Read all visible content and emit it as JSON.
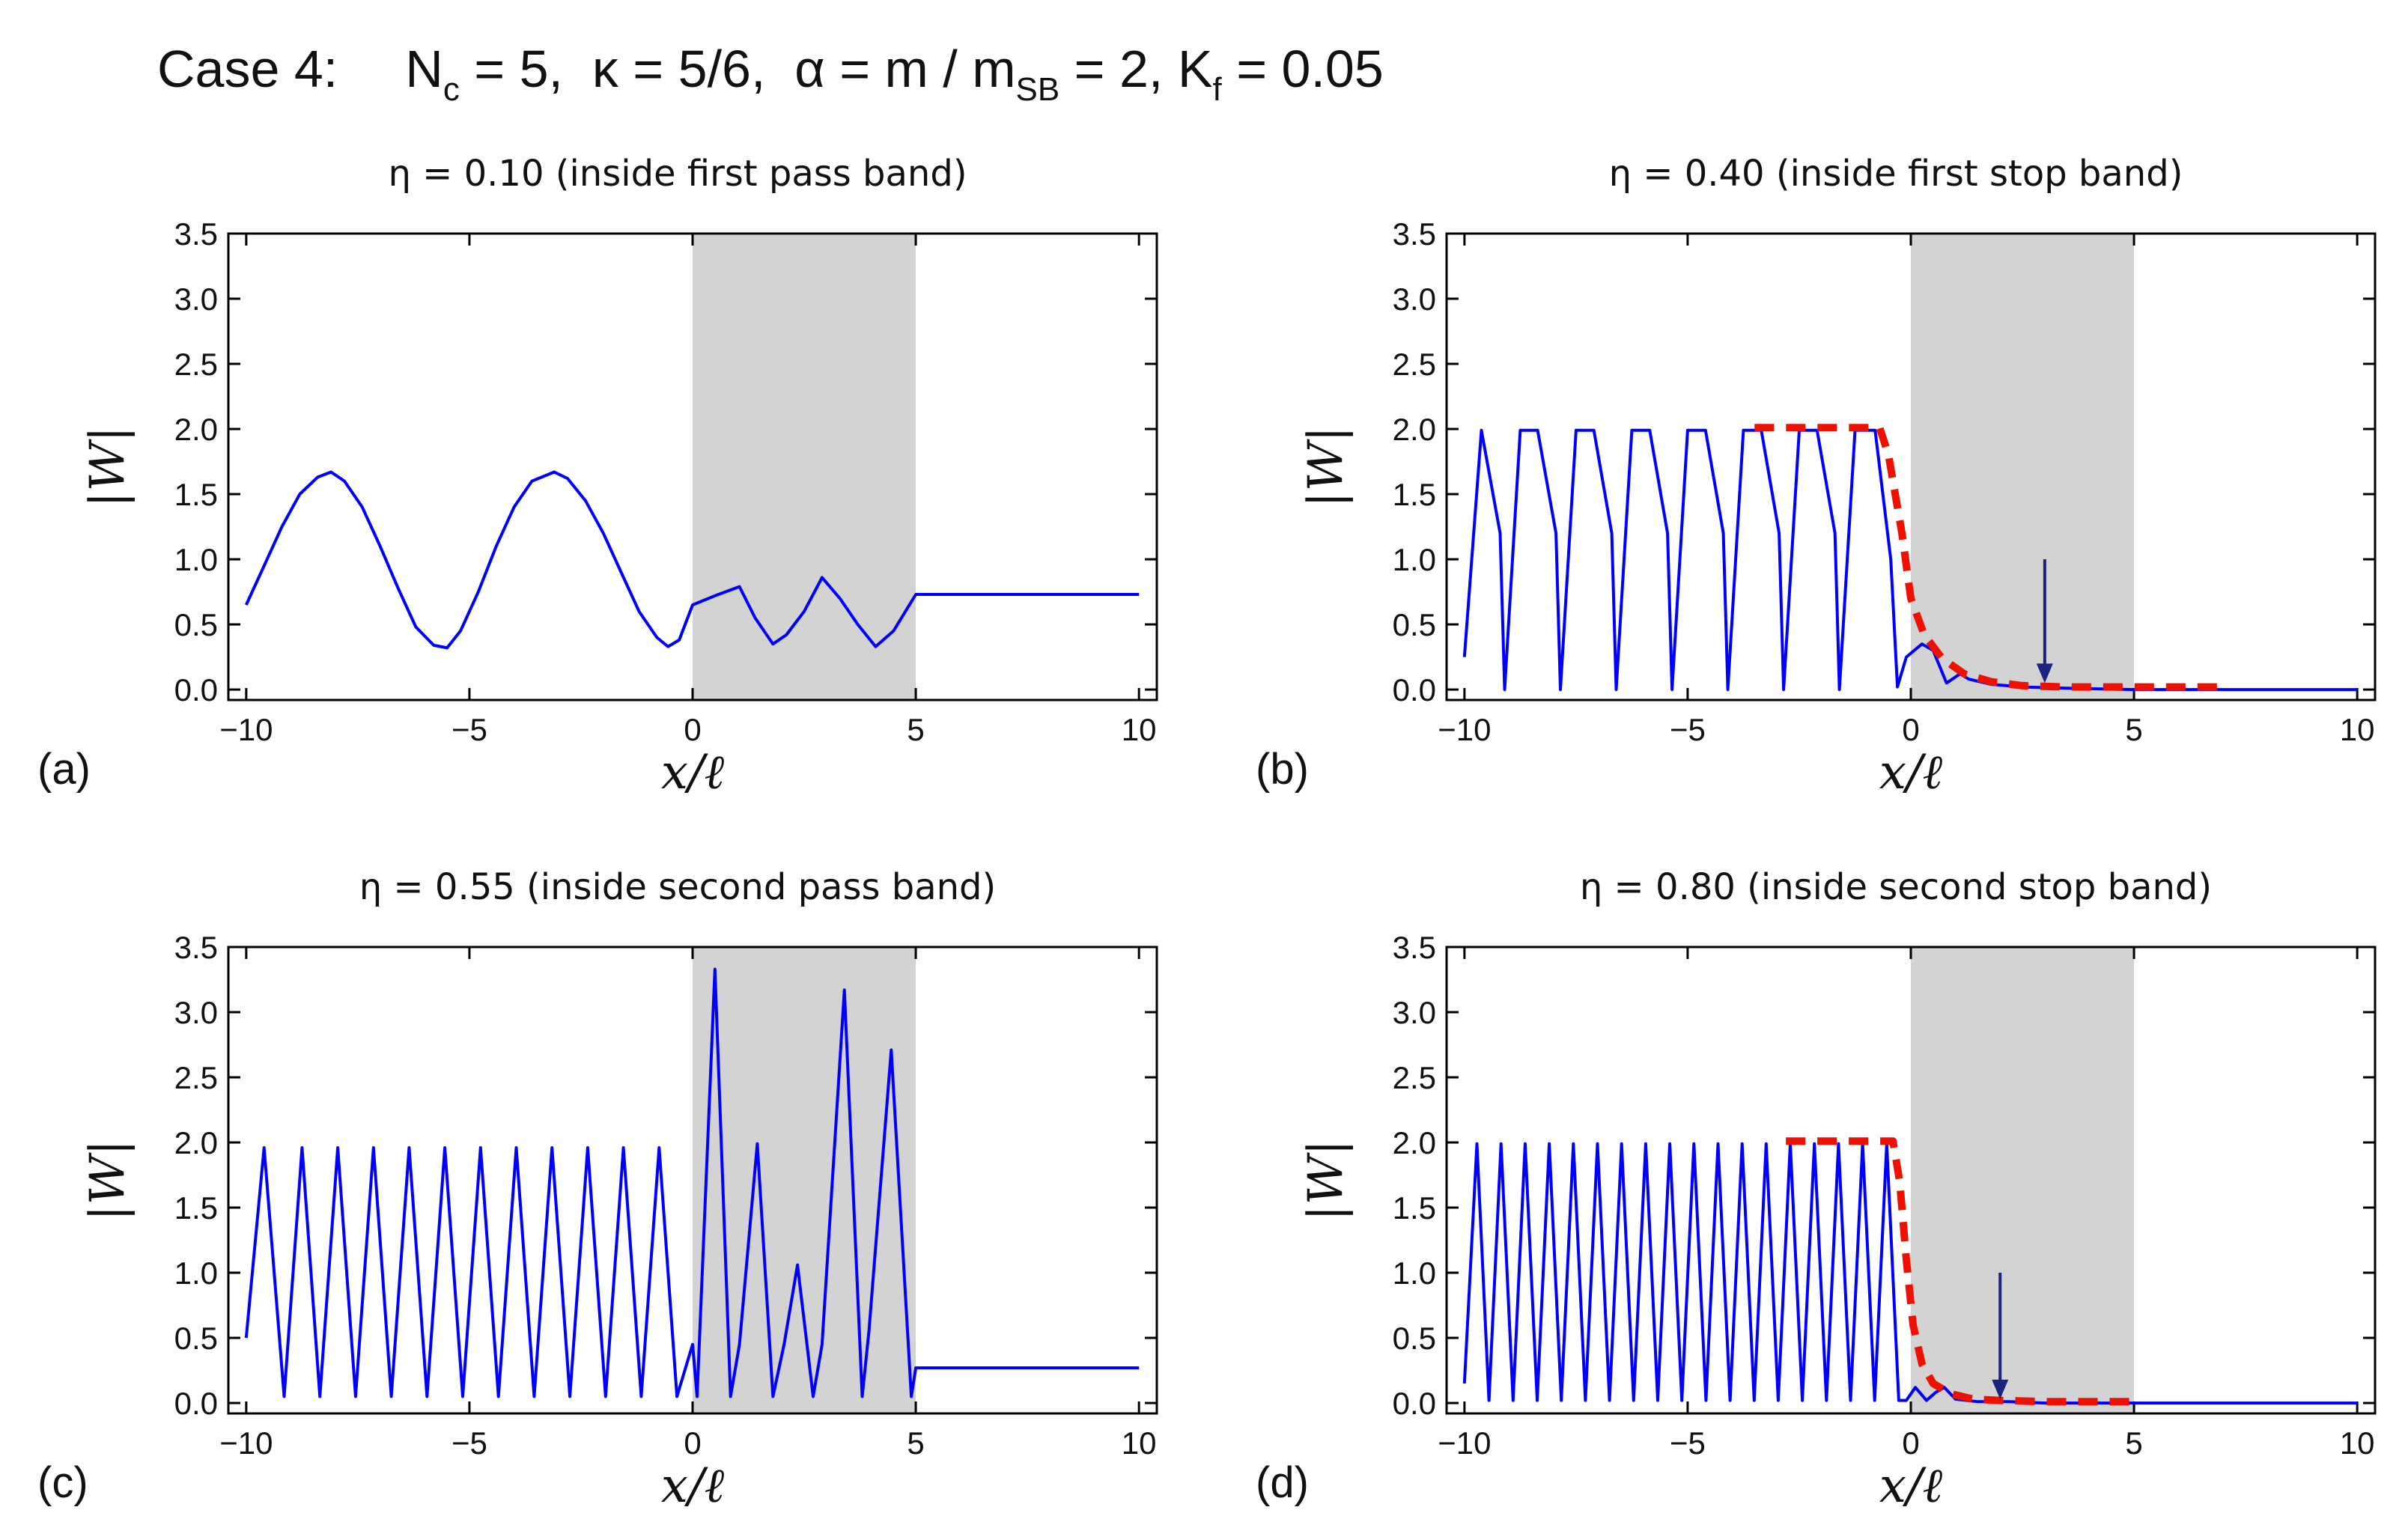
{
  "title": {
    "lead": "Case 4:",
    "parts": [
      {
        "text": "N",
        "sub": "c"
      },
      {
        "text": " = 5,  κ = 5/6,  α = m / m",
        "sub": "SB"
      },
      {
        "text": " = 2, K",
        "sub": "f"
      },
      {
        "text": " = 0.05",
        "sub": ""
      }
    ]
  },
  "colors": {
    "shade": "#d3d3d3",
    "line": "#0000ff",
    "envelope": "#ee1100",
    "arrow": "#1a237e"
  },
  "chart_data": [
    {
      "type": "line",
      "panel": "(a)",
      "title": "η = 0.10 (inside first pass band)",
      "xlabel": "x/ℓ",
      "ylabel": "|W|",
      "xlim": [
        -10.4,
        10.4
      ],
      "ylim": [
        -0.08,
        3.5
      ],
      "xticks": [
        -10,
        -5,
        0,
        5,
        10
      ],
      "xticklabels": [
        "−10",
        "−5",
        "0",
        "5",
        "10"
      ],
      "yticks": [
        0,
        0.5,
        1,
        1.5,
        2,
        2.5,
        3,
        3.5
      ],
      "yticklabels": [
        "0.0",
        "0.5",
        "1.0",
        "1.5",
        "2.0",
        "2.5",
        "3.0",
        "3.5"
      ],
      "shaded": [
        0,
        5
      ],
      "series": [
        {
          "x": [
            -10,
            -9.6,
            -9.2,
            -8.8,
            -8.4,
            -8.1,
            -7.8,
            -7.4,
            -7,
            -6.6,
            -6.2,
            -5.8,
            -5.5,
            -5.2,
            -4.8,
            -4.4,
            -4,
            -3.6,
            -3.1,
            -2.8,
            -2.4,
            -2,
            -1.6,
            -1.2,
            -0.8,
            -0.55,
            -0.3,
            0,
            0.5,
            1.05,
            1.4,
            1.8,
            2.1,
            2.5,
            2.9,
            3.3,
            3.7,
            4.1,
            4.5,
            5,
            5.5,
            10
          ],
          "y": [
            0.65,
            0.95,
            1.25,
            1.5,
            1.63,
            1.67,
            1.6,
            1.4,
            1.1,
            0.78,
            0.48,
            0.34,
            0.32,
            0.45,
            0.75,
            1.1,
            1.4,
            1.6,
            1.67,
            1.62,
            1.45,
            1.2,
            0.9,
            0.6,
            0.4,
            0.33,
            0.38,
            0.65,
            0.72,
            0.79,
            0.55,
            0.35,
            0.42,
            0.6,
            0.86,
            0.7,
            0.5,
            0.33,
            0.45,
            0.73,
            0.73,
            0.73
          ]
        }
      ],
      "envelope": null,
      "arrow": null
    },
    {
      "type": "line",
      "panel": "(b)",
      "title": "η = 0.40 (inside first stop band)",
      "xlabel": "x/ℓ",
      "ylabel": "|W|",
      "xlim": [
        -10.4,
        10.4
      ],
      "ylim": [
        -0.08,
        3.5
      ],
      "xticks": [
        -10,
        -5,
        0,
        5,
        10
      ],
      "xticklabels": [
        "−10",
        "−5",
        "0",
        "5",
        "10"
      ],
      "yticks": [
        0,
        0.5,
        1,
        1.5,
        2,
        2.5,
        3,
        3.5
      ],
      "yticklabels": [
        "0.0",
        "0.5",
        "1.0",
        "1.5",
        "2.0",
        "2.5",
        "3.0",
        "3.5"
      ],
      "shaded": [
        0,
        5
      ],
      "series": [
        {
          "x": [
            -10,
            -9.62,
            -9.2,
            -9.1,
            -8.75,
            -8.36,
            -7.95,
            -7.85,
            -7.5,
            -7.1,
            -6.7,
            -6.6,
            -6.25,
            -5.85,
            -5.45,
            -5.35,
            -5,
            -4.6,
            -4.2,
            -4.1,
            -3.75,
            -3.35,
            -2.95,
            -2.85,
            -2.5,
            -2.1,
            -1.7,
            -1.6,
            -1.25,
            -0.8,
            -0.45,
            -0.3,
            -0.1,
            0.25,
            0.5,
            0.8,
            1.1,
            1.3,
            1.8,
            2.5,
            3.5,
            5,
            10
          ],
          "y": [
            0.25,
            1.99,
            1.2,
            0,
            1.99,
            1.99,
            1.2,
            0,
            1.99,
            1.99,
            1.2,
            0,
            1.99,
            1.99,
            1.2,
            0,
            1.99,
            1.99,
            1.2,
            0,
            1.99,
            1.99,
            1.2,
            0,
            1.99,
            1.99,
            1.2,
            0,
            1.99,
            1.99,
            1.0,
            0.02,
            0.25,
            0.35,
            0.3,
            0.05,
            0.12,
            0.08,
            0.04,
            0.02,
            0.01,
            0,
            0
          ]
        }
      ],
      "envelope": {
        "x": [
          -3.5,
          -0.7,
          -0.5,
          -0.2,
          0,
          0.3,
          0.7,
          1.2,
          1.8,
          2.5,
          3.5,
          5,
          7
        ],
        "y": [
          2.01,
          2.01,
          1.8,
          1.2,
          0.7,
          0.42,
          0.24,
          0.12,
          0.06,
          0.03,
          0.02,
          0.02,
          0.02
        ]
      },
      "arrow": {
        "x": 3.0,
        "y_from": 1.0,
        "y_to": 0.05
      }
    },
    {
      "type": "line",
      "panel": "(c)",
      "title": "η = 0.55 (inside second pass band)",
      "xlabel": "x/ℓ",
      "ylabel": "|W|",
      "xlim": [
        -10.4,
        10.4
      ],
      "ylim": [
        -0.08,
        3.5
      ],
      "xticks": [
        -10,
        -5,
        0,
        5,
        10
      ],
      "xticklabels": [
        "−10",
        "−5",
        "0",
        "5",
        "10"
      ],
      "yticks": [
        0,
        0.5,
        1,
        1.5,
        2,
        2.5,
        3,
        3.5
      ],
      "yticklabels": [
        "0.0",
        "0.5",
        "1.0",
        "1.5",
        "2.0",
        "2.5",
        "3.0",
        "3.5"
      ],
      "shaded": [
        0,
        5
      ],
      "series": [
        {
          "x": [
            -10,
            -9.6,
            -9.15,
            -8.75,
            -8.35,
            -7.95,
            -7.55,
            -7.15,
            -6.75,
            -6.35,
            -5.95,
            -5.55,
            -5.15,
            -4.75,
            -4.35,
            -3.95,
            -3.55,
            -3.15,
            -2.75,
            -2.35,
            -1.95,
            -1.55,
            -1.15,
            -0.75,
            -0.35,
            0,
            0.1,
            0.5,
            0.85,
            1.05,
            1.45,
            1.8,
            2.05,
            2.35,
            2.7,
            2.9,
            3.4,
            3.8,
            3.95,
            4.45,
            4.9,
            5,
            10
          ],
          "y": [
            0.5,
            1.96,
            0.05,
            1.96,
            0.05,
            1.96,
            0.05,
            1.96,
            0.05,
            1.96,
            0.05,
            1.96,
            0.05,
            1.96,
            0.05,
            1.96,
            0.05,
            1.96,
            0.05,
            1.96,
            0.05,
            1.96,
            0.05,
            1.96,
            0.05,
            0.45,
            0.05,
            3.33,
            0.05,
            0.45,
            1.99,
            0.05,
            0.45,
            1.06,
            0.05,
            0.45,
            3.17,
            0.05,
            0.55,
            2.71,
            0.05,
            0.27,
            0.27
          ]
        }
      ],
      "envelope": null,
      "arrow": null
    },
    {
      "type": "line",
      "panel": "(d)",
      "title": "η = 0.80 (inside second stop band)",
      "xlabel": "x/ℓ",
      "ylabel": "|W|",
      "xlim": [
        -10.4,
        10.4
      ],
      "ylim": [
        -0.08,
        3.5
      ],
      "xticks": [
        -10,
        -5,
        0,
        5,
        10
      ],
      "xticklabels": [
        "−10",
        "−5",
        "0",
        "5",
        "10"
      ],
      "yticks": [
        0,
        0.5,
        1,
        1.5,
        2,
        2.5,
        3,
        3.5
      ],
      "yticklabels": [
        "0.0",
        "0.5",
        "1.0",
        "1.5",
        "2.0",
        "2.5",
        "3.0",
        "3.5"
      ],
      "shaded": [
        0,
        5
      ],
      "series": [
        {
          "x": [
            -10,
            -9.72,
            -9.45,
            -9.18,
            -8.91,
            -8.64,
            -8.37,
            -8.1,
            -7.83,
            -7.56,
            -7.29,
            -7.02,
            -6.75,
            -6.48,
            -6.21,
            -5.94,
            -5.67,
            -5.4,
            -5.13,
            -4.86,
            -4.59,
            -4.32,
            -4.05,
            -3.78,
            -3.51,
            -3.24,
            -2.97,
            -2.7,
            -2.43,
            -2.16,
            -1.89,
            -1.62,
            -1.35,
            -1.08,
            -0.81,
            -0.54,
            -0.27,
            -0.1,
            0.1,
            0.35,
            0.55,
            0.75,
            1.0,
            1.5,
            2.2,
            3,
            5,
            10
          ],
          "y": [
            0.15,
            1.99,
            0.02,
            1.99,
            0.02,
            1.99,
            0.02,
            1.99,
            0.02,
            1.99,
            0.02,
            1.99,
            0.02,
            1.99,
            0.02,
            1.99,
            0.02,
            1.99,
            0.02,
            1.99,
            0.02,
            1.99,
            0.02,
            1.99,
            0.02,
            1.99,
            0.02,
            1.99,
            0.02,
            1.99,
            0.02,
            1.99,
            0.02,
            1.99,
            0.02,
            1.99,
            0.02,
            0.02,
            0.12,
            0.02,
            0.08,
            0.12,
            0.03,
            0.01,
            0.01,
            0,
            0,
            0
          ]
        }
      ],
      "envelope": {
        "x": [
          -2.8,
          -0.4,
          -0.25,
          -0.1,
          0.05,
          0.25,
          0.5,
          0.9,
          1.4,
          2,
          3,
          5
        ],
        "y": [
          2.01,
          2.01,
          1.7,
          1.1,
          0.6,
          0.3,
          0.15,
          0.07,
          0.03,
          0.02,
          0.01,
          0.01
        ]
      },
      "arrow": {
        "x": 2.0,
        "y_from": 1.0,
        "y_to": 0.03
      }
    }
  ]
}
